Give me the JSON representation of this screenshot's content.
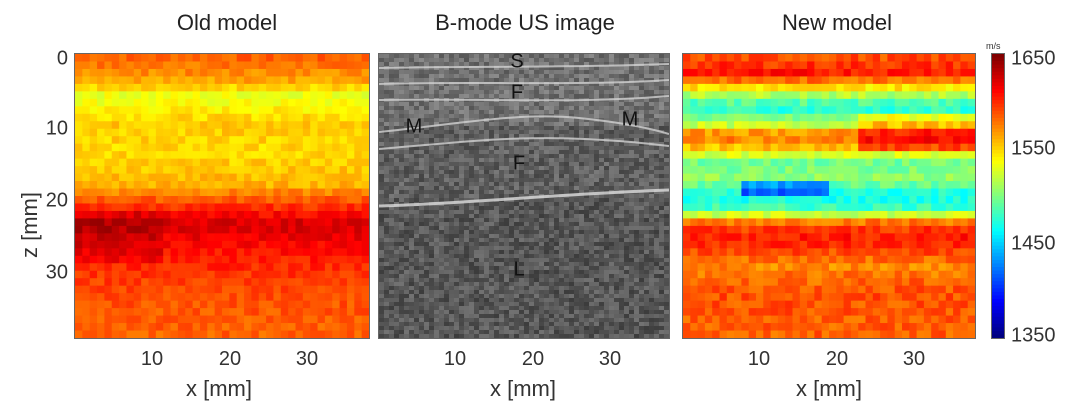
{
  "titles": {
    "left": "Old model",
    "middle": "B-mode US image",
    "right": "New model"
  },
  "axes": {
    "xlabel": "x [mm]",
    "ylabel": "z [mm]",
    "x_ticks": [
      "10",
      "20",
      "30"
    ],
    "y_ticks": [
      "0",
      "10",
      "20",
      "30"
    ]
  },
  "ultrasound_labels": [
    "S",
    "F",
    "M",
    "M",
    "F",
    "L"
  ],
  "colorbar": {
    "unit": "m/s",
    "ticks": [
      "1650",
      "1550",
      "1450",
      "1350"
    ],
    "min": 1350,
    "max": 1650,
    "colormap": "jet"
  },
  "colors": {
    "border": "#666666",
    "background": "#ffffff"
  }
}
